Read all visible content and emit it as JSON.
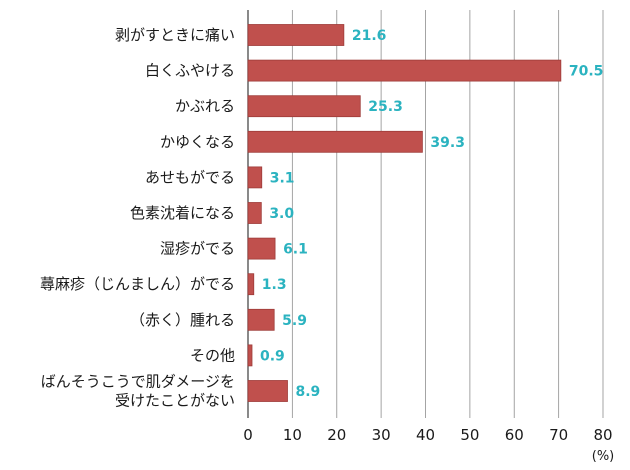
{
  "chart_data": {
    "type": "bar",
    "orientation": "horizontal",
    "categories": [
      [
        "剥がすときに痛い"
      ],
      [
        "白くふやける"
      ],
      [
        "かぶれる"
      ],
      [
        "かゆくなる"
      ],
      [
        "あせもがでる"
      ],
      [
        "色素沈着になる"
      ],
      [
        "湿疹がでる"
      ],
      [
        "蕁麻疹（じんましん）がでる"
      ],
      [
        "（赤く）腫れる"
      ],
      [
        "その他"
      ],
      [
        "ばんそうこうで肌ダメージを",
        "受けたことがない"
      ]
    ],
    "values": [
      21.6,
      70.5,
      25.3,
      39.3,
      3.1,
      3.0,
      6.1,
      1.3,
      5.9,
      0.9,
      8.9
    ],
    "value_labels": [
      "21.6",
      "70.5",
      "25.3",
      "39.3",
      "3.1",
      "3.0",
      "6.1",
      "1.3",
      "5.9",
      "0.9",
      "8.9"
    ],
    "xlim": [
      0,
      80
    ],
    "xticks": [
      0,
      10,
      20,
      30,
      40,
      50,
      60,
      70,
      80
    ],
    "unit_label": "(%)",
    "grid": "vertical",
    "colors": {
      "bar": "#c0504d",
      "bar_stroke": "#9e3b39",
      "value_text": "#2bb3c0",
      "grid": "#9a9a9a",
      "axis": "#4a4a4a"
    }
  }
}
